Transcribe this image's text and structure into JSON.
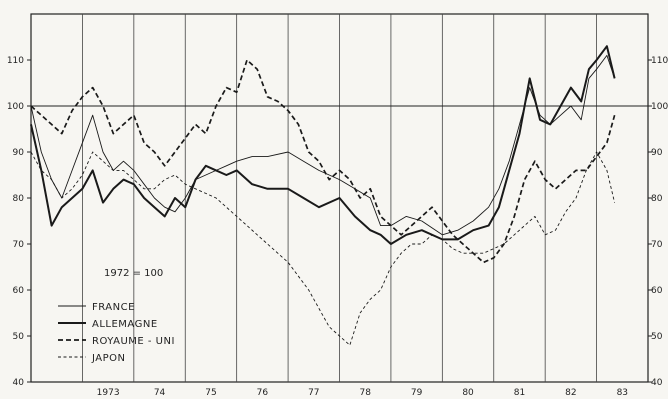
{
  "chart_data": {
    "type": "line",
    "note": "1972 = 100",
    "x_range": [
      1972.0,
      1984.0
    ],
    "ylim": [
      40,
      120
    ],
    "y_ticks": [
      40,
      50,
      60,
      70,
      80,
      90,
      100,
      110
    ],
    "x_tick_labels": [
      "1973",
      "74",
      "75",
      "76",
      "77",
      "78",
      "79",
      "80",
      "81",
      "82",
      "83"
    ],
    "x_tick_values": [
      1973.5,
      1974.5,
      1975.5,
      1976.5,
      1977.5,
      1978.5,
      1979.5,
      1980.5,
      1981.5,
      1982.5,
      1983.5
    ],
    "year_grid": [
      1973,
      1974,
      1975,
      1976,
      1977,
      1978,
      1979,
      1980,
      1981,
      1982,
      1983
    ],
    "reference_line": 100,
    "legend_position": "lower-left",
    "series": [
      {
        "name": "FRANCE",
        "style": "thin-solid",
        "x": [
          1972.0,
          1972.2,
          1972.4,
          1972.6,
          1972.8,
          1973.0,
          1973.2,
          1973.4,
          1973.6,
          1973.8,
          1974.0,
          1974.2,
          1974.4,
          1974.6,
          1974.8,
          1975.0,
          1975.2,
          1975.4,
          1975.6,
          1975.8,
          1976.0,
          1976.3,
          1976.6,
          1977.0,
          1977.3,
          1977.6,
          1978.0,
          1978.3,
          1978.6,
          1978.8,
          1979.0,
          1979.3,
          1979.6,
          1980.0,
          1980.3,
          1980.6,
          1980.9,
          1981.1,
          1981.3,
          1981.5,
          1981.7,
          1981.9,
          1982.1,
          1982.3,
          1982.5,
          1982.7,
          1982.85,
          1983.0,
          1983.2,
          1983.35
        ],
        "values": [
          100,
          90,
          84,
          80,
          86,
          92,
          98,
          90,
          86,
          88,
          86,
          83,
          80,
          78,
          77,
          80,
          84,
          85,
          86,
          87,
          88,
          89,
          89,
          90,
          88,
          86,
          84,
          82,
          80,
          74,
          74,
          76,
          75,
          72,
          73,
          75,
          78,
          82,
          88,
          96,
          104,
          98,
          96,
          98,
          100,
          97,
          106,
          108,
          111,
          106
        ]
      },
      {
        "name": "ALLEMAGNE",
        "style": "thick-solid",
        "x": [
          1972.0,
          1972.2,
          1972.4,
          1972.6,
          1972.8,
          1973.0,
          1973.2,
          1973.4,
          1973.6,
          1973.8,
          1974.0,
          1974.2,
          1974.4,
          1974.6,
          1974.8,
          1975.0,
          1975.2,
          1975.4,
          1975.6,
          1975.8,
          1976.0,
          1976.3,
          1976.6,
          1977.0,
          1977.3,
          1977.6,
          1978.0,
          1978.3,
          1978.6,
          1978.8,
          1979.0,
          1979.3,
          1979.6,
          1980.0,
          1980.3,
          1980.6,
          1980.9,
          1981.1,
          1981.3,
          1981.5,
          1981.7,
          1981.9,
          1982.1,
          1982.3,
          1982.5,
          1982.7,
          1982.85,
          1983.0,
          1983.2,
          1983.35
        ],
        "values": [
          96,
          86,
          74,
          78,
          80,
          82,
          86,
          79,
          82,
          84,
          83,
          80,
          78,
          76,
          80,
          78,
          84,
          87,
          86,
          85,
          86,
          83,
          82,
          82,
          80,
          78,
          80,
          76,
          73,
          72,
          70,
          72,
          73,
          71,
          71,
          73,
          74,
          78,
          86,
          94,
          106,
          97,
          96,
          100,
          104,
          101,
          108,
          110,
          113,
          106
        ]
      },
      {
        "name": "ROYAUME - UNI",
        "style": "thick-dashed",
        "x": [
          1972.0,
          1972.2,
          1972.4,
          1972.6,
          1972.8,
          1973.0,
          1973.2,
          1973.4,
          1973.6,
          1973.8,
          1974.0,
          1974.2,
          1974.4,
          1974.6,
          1974.8,
          1975.0,
          1975.2,
          1975.4,
          1975.6,
          1975.8,
          1976.0,
          1976.2,
          1976.4,
          1976.6,
          1976.8,
          1977.0,
          1977.2,
          1977.4,
          1977.6,
          1977.8,
          1978.0,
          1978.2,
          1978.4,
          1978.6,
          1978.8,
          1979.0,
          1979.2,
          1979.4,
          1979.6,
          1979.8,
          1980.0,
          1980.2,
          1980.4,
          1980.6,
          1980.8,
          1981.0,
          1981.2,
          1981.4,
          1981.6,
          1981.8,
          1982.0,
          1982.2,
          1982.4,
          1982.6,
          1982.8,
          1983.0,
          1983.2,
          1983.35
        ],
        "values": [
          100,
          98,
          96,
          94,
          99,
          102,
          104,
          100,
          94,
          96,
          98,
          92,
          90,
          87,
          90,
          93,
          96,
          94,
          100,
          104,
          103,
          110,
          108,
          102,
          101,
          99,
          96,
          90,
          88,
          84,
          86,
          84,
          80,
          82,
          76,
          74,
          72,
          74,
          76,
          78,
          75,
          72,
          70,
          68,
          66,
          67,
          70,
          76,
          84,
          88,
          84,
          82,
          84,
          86,
          86,
          89,
          92,
          98
        ]
      },
      {
        "name": "JAPON",
        "style": "thin-dashed",
        "x": [
          1972.0,
          1972.2,
          1972.4,
          1972.6,
          1972.8,
          1973.0,
          1973.2,
          1973.4,
          1973.6,
          1973.8,
          1974.0,
          1974.2,
          1974.4,
          1974.6,
          1974.8,
          1975.0,
          1975.2,
          1975.4,
          1975.6,
          1975.8,
          1976.0,
          1976.2,
          1976.4,
          1976.6,
          1976.8,
          1977.0,
          1977.2,
          1977.4,
          1977.6,
          1977.8,
          1978.0,
          1978.2,
          1978.4,
          1978.6,
          1978.8,
          1979.0,
          1979.2,
          1979.4,
          1979.6,
          1979.8,
          1980.0,
          1980.2,
          1980.4,
          1980.6,
          1980.8,
          1981.0,
          1981.2,
          1981.4,
          1981.6,
          1981.8,
          1982.0,
          1982.2,
          1982.4,
          1982.6,
          1982.8,
          1983.0,
          1983.2,
          1983.35
        ],
        "values": [
          90,
          86,
          84,
          80,
          82,
          85,
          90,
          88,
          86,
          86,
          84,
          82,
          82,
          84,
          85,
          83,
          82,
          81,
          80,
          78,
          76,
          74,
          72,
          70,
          68,
          66,
          63,
          60,
          56,
          52,
          50,
          48,
          55,
          58,
          60,
          65,
          68,
          70,
          70,
          72,
          71,
          69,
          68,
          68,
          68,
          69,
          70,
          72,
          74,
          76,
          72,
          73,
          77,
          80,
          86,
          90,
          86,
          79
        ]
      }
    ]
  }
}
